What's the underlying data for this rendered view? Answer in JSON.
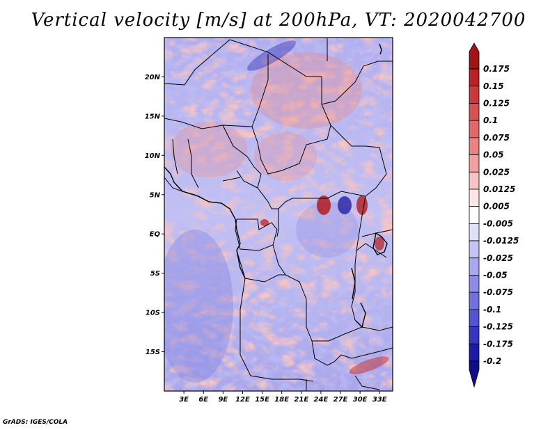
{
  "title": "Vertical velocity [m/s] at 200hPa, VT: 2020042700",
  "credit": "GrADS: IGES/COLA",
  "map": {
    "variable": "Vertical velocity",
    "units": "m/s",
    "level": "200hPa",
    "valid_time": "2020042700",
    "lon_range": [
      0,
      35
    ],
    "lat_range": [
      -20,
      25
    ],
    "lat_ticks": [
      {
        "value": 20,
        "label": "20N"
      },
      {
        "value": 15,
        "label": "15N"
      },
      {
        "value": 10,
        "label": "10N"
      },
      {
        "value": 5,
        "label": "5N"
      },
      {
        "value": 0,
        "label": "EQ"
      },
      {
        "value": -5,
        "label": "5S"
      },
      {
        "value": -10,
        "label": "10S"
      },
      {
        "value": -15,
        "label": "15S"
      }
    ],
    "lon_ticks": [
      {
        "value": 3,
        "label": "3E"
      },
      {
        "value": 6,
        "label": "6E"
      },
      {
        "value": 9,
        "label": "9E"
      },
      {
        "value": 12,
        "label": "12E"
      },
      {
        "value": 15,
        "label": "15E"
      },
      {
        "value": 18,
        "label": "18E"
      },
      {
        "value": 21,
        "label": "21E"
      },
      {
        "value": 24,
        "label": "24E"
      },
      {
        "value": 27,
        "label": "27E"
      },
      {
        "value": 30,
        "label": "30E"
      },
      {
        "value": 33,
        "label": "33E"
      }
    ]
  },
  "colorbar": {
    "labels": [
      "0.175",
      "0.15",
      "0.125",
      "0.1",
      "0.075",
      "0.05",
      "0.025",
      "0.0125",
      "0.005",
      "-0.005",
      "-0.0125",
      "-0.025",
      "-0.05",
      "-0.075",
      "-0.1",
      "-0.125",
      "-0.175",
      "-0.2"
    ],
    "colors": [
      "#a01418",
      "#b82226",
      "#c83a3c",
      "#d85254",
      "#e06868",
      "#e88484",
      "#f0a0a0",
      "#f6c4c4",
      "#fbe4e4",
      "#ffffff",
      "#e0e0fa",
      "#c4c4f4",
      "#a8a8ee",
      "#8c8ce6",
      "#7070de",
      "#5454d2",
      "#3636c0",
      "#1c1ca8",
      "#100c8c"
    ]
  }
}
